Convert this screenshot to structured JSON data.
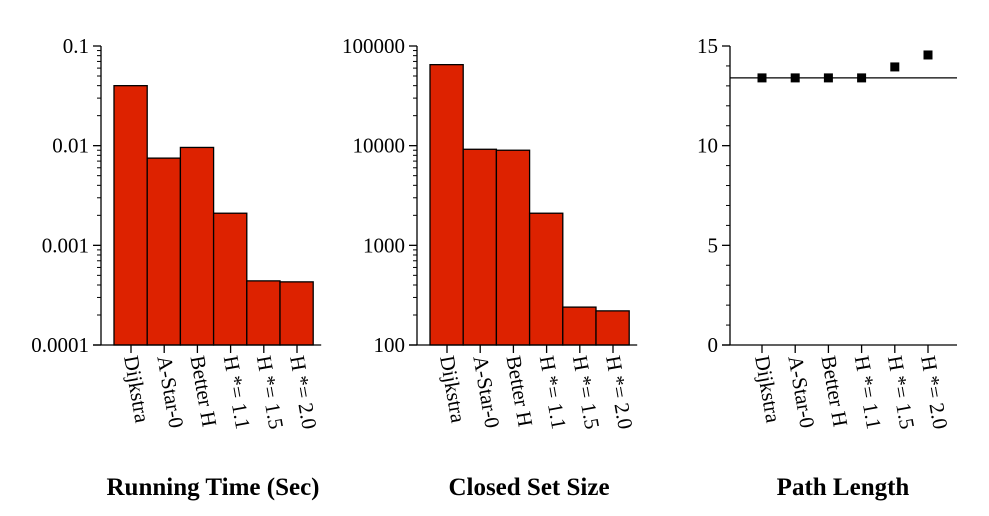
{
  "colors": {
    "bar_fill": "#DD2200",
    "bar_stroke": "#000000",
    "marker": "#000000",
    "axis": "#000000"
  },
  "chart_data": [
    {
      "type": "bar",
      "title": "Running Time (Sec)",
      "yscale": "log",
      "ylim": [
        0.0001,
        0.1
      ],
      "yticks": [
        0.0001,
        0.001,
        0.01,
        0.1
      ],
      "ytick_labels": [
        "0.0001",
        "0.001",
        "0.01",
        "0.1"
      ],
      "categories": [
        "Dijkstra",
        "A-Star-0",
        "Better H",
        "H *= 1.1",
        "H *= 1.5",
        "H *= 2.0"
      ],
      "values": [
        0.04,
        0.0075,
        0.0096,
        0.0021,
        0.00044,
        0.00043
      ],
      "grid": false
    },
    {
      "type": "bar",
      "title": "Closed Set Size",
      "yscale": "log",
      "ylim": [
        100,
        100000
      ],
      "yticks": [
        100,
        1000,
        10000,
        100000
      ],
      "ytick_labels": [
        "100",
        "1000",
        "10000",
        "100000"
      ],
      "categories": [
        "Dijkstra",
        "A-Star-0",
        "Better H",
        "H *= 1.1",
        "H *= 1.5",
        "H *= 2.0"
      ],
      "values": [
        65000,
        9200,
        9000,
        2100,
        240,
        220
      ],
      "grid": false
    },
    {
      "type": "scatter",
      "title": "Path Length",
      "yscale": "linear",
      "ylim": [
        0,
        15
      ],
      "yticks": [
        0,
        5,
        10,
        15
      ],
      "ytick_labels": [
        "0",
        "5",
        "10",
        "15"
      ],
      "categories": [
        "Dijkstra",
        "A-Star-0",
        "Better H",
        "H *= 1.1",
        "H *= 1.5",
        "H *= 2.0"
      ],
      "values": [
        13.4,
        13.4,
        13.4,
        13.4,
        13.95,
        14.55
      ],
      "reference_line": 13.4,
      "grid": false
    }
  ]
}
